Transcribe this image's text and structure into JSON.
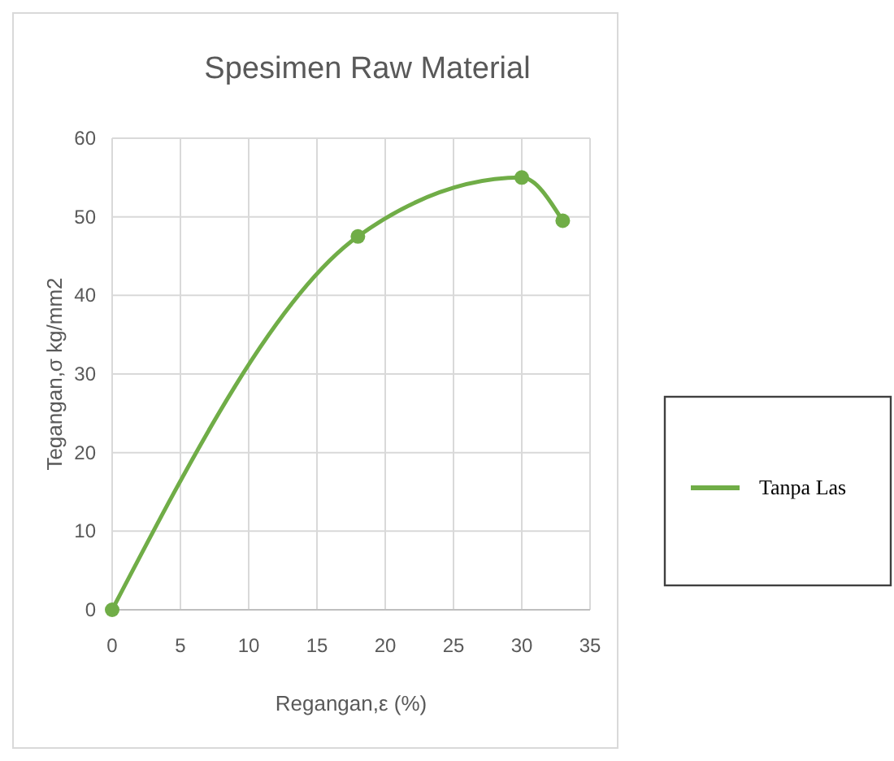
{
  "chart_data": {
    "type": "line",
    "title": "Spesimen Raw Material",
    "xlabel": "Regangan,ε (%)",
    "ylabel": "Tegangan,σ kg/mm2",
    "x": [
      0,
      18,
      30,
      33
    ],
    "series": [
      {
        "name": "Tanpa Las",
        "color": "#70ad47",
        "values": [
          0,
          47.5,
          55,
          49.5
        ]
      }
    ],
    "xlim": [
      0,
      35
    ],
    "xticks": [
      0,
      5,
      10,
      15,
      20,
      25,
      30,
      35
    ],
    "ylim": [
      0,
      60
    ],
    "yticks": [
      0,
      10,
      20,
      30,
      40,
      50,
      60
    ],
    "grid": true,
    "legend": "right",
    "marker": "circle"
  }
}
